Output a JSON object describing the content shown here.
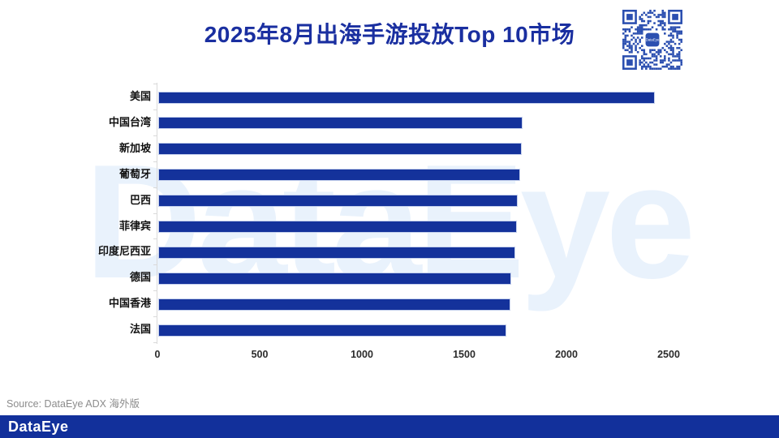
{
  "title": "2025年8月出海手游投放Top 10市场",
  "source_note": "Source: DataEye ADX 海外版",
  "watermark_text": "DataEye",
  "footer": {
    "logo_text": "DataEye"
  },
  "qr": {
    "center_label": "DataEye"
  },
  "colors": {
    "bar": "#14329b",
    "title": "#1a2fa0",
    "footer_bg": "#12309b",
    "watermark": "#e9f2fc",
    "qr": "#2b4fb0",
    "axis": "#d9d9d9",
    "label": "#111111",
    "tick": "#2b2b2b",
    "source": "#8c8c8c"
  },
  "chart_data": {
    "type": "bar",
    "orientation": "horizontal",
    "title": "2025年8月出海手游投放Top 10市场",
    "categories": [
      "美国",
      "中国台湾",
      "新加坡",
      "葡萄牙",
      "巴西",
      "菲律宾",
      "印度尼西亚",
      "德国",
      "中国香港",
      "法国"
    ],
    "values": [
      2420,
      1775,
      1770,
      1760,
      1750,
      1745,
      1740,
      1720,
      1715,
      1695
    ],
    "x_ticks": [
      0,
      500,
      1000,
      1500,
      2000,
      2500
    ],
    "xlim": [
      0,
      2500
    ],
    "xlabel": "",
    "ylabel": "",
    "grid": false,
    "legend": false
  }
}
